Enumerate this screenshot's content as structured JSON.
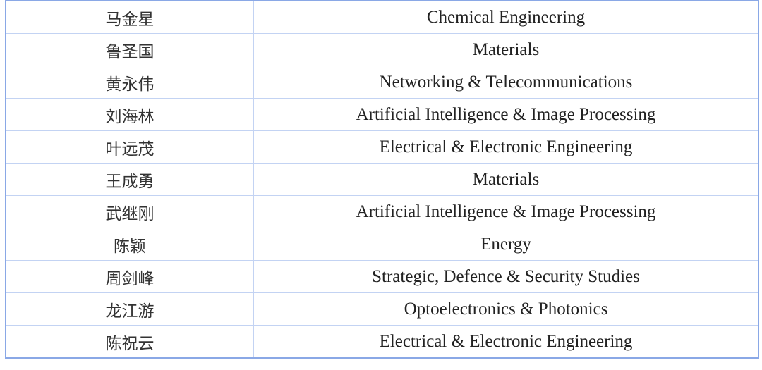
{
  "rows": [
    {
      "name": "马金星",
      "field": "Chemical Engineering"
    },
    {
      "name": "鲁圣国",
      "field": "Materials"
    },
    {
      "name": "黄永伟",
      "field": "Networking & Telecommunications"
    },
    {
      "name": "刘海林",
      "field": "Artificial Intelligence & Image Processing"
    },
    {
      "name": "叶远茂",
      "field": "Electrical & Electronic Engineering"
    },
    {
      "name": "王成勇",
      "field": "Materials"
    },
    {
      "name": "武继刚",
      "field": "Artificial Intelligence & Image Processing"
    },
    {
      "name": "陈颖",
      "field": "Energy"
    },
    {
      "name": "周剑峰",
      "field": "Strategic, Defence & Security Studies"
    },
    {
      "name": "龙江游",
      "field": "Optoelectronics & Photonics"
    },
    {
      "name": "陈祝云",
      "field": "Electrical & Electronic Engineering"
    }
  ],
  "colors": {
    "outer_border": "#8aa8e6",
    "inner_border": "#c3d3f3"
  }
}
